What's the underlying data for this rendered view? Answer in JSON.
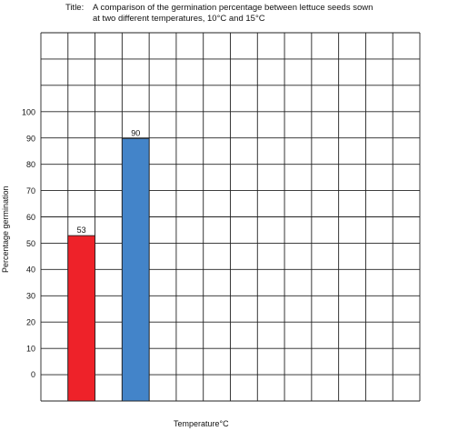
{
  "chart_data": {
    "type": "bar",
    "title_prefix": "Title:",
    "title": "A comparison of the germination percentage between lettuce seeds sown",
    "title_line2": "at two different temperatures, 10°C and 15°C",
    "xlabel": "Temperature°C",
    "ylabel": "Percentage germination",
    "ylim": [
      0,
      100
    ],
    "yticks": [
      "0",
      "10",
      "20",
      "30",
      "40",
      "50",
      "60",
      "70",
      "80",
      "90",
      "100"
    ],
    "grid": true,
    "series": [
      {
        "values": [
          53,
          90
        ],
        "colors": [
          "#ee2229",
          "#4384c9"
        ]
      }
    ],
    "data_labels": [
      "53",
      "90"
    ]
  }
}
